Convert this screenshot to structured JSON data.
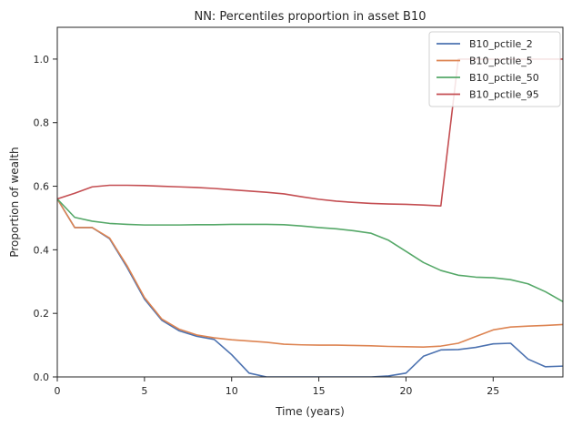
{
  "chart_data": {
    "type": "line",
    "title": "NN: Percentiles proportion in asset B10",
    "xlabel": "Time (years)",
    "ylabel": "Proportion of wealth",
    "xlim": [
      0,
      29
    ],
    "ylim": [
      0,
      1.1
    ],
    "xticks": [
      0,
      5,
      10,
      15,
      20,
      25
    ],
    "yticks": [
      0.0,
      0.2,
      0.4,
      0.6,
      0.8,
      1.0
    ],
    "grid": false,
    "legend_position": "top-right",
    "x": [
      0,
      1,
      2,
      3,
      4,
      5,
      6,
      7,
      8,
      9,
      10,
      11,
      12,
      13,
      14,
      15,
      16,
      17,
      18,
      19,
      20,
      21,
      22,
      23,
      24,
      25,
      26,
      27,
      28,
      29
    ],
    "series": [
      {
        "name": "B10_pctile_2",
        "color": "#4c72b0",
        "values": [
          0.56,
          0.47,
          0.47,
          0.435,
          0.345,
          0.245,
          0.178,
          0.145,
          0.128,
          0.118,
          0.07,
          0.012,
          0.0,
          0.0,
          0.0,
          0.0,
          0.0,
          0.0,
          0.0,
          0.003,
          0.012,
          0.065,
          0.085,
          0.086,
          0.093,
          0.104,
          0.106,
          0.056,
          0.032,
          0.034
        ]
      },
      {
        "name": "B10_pctile_5",
        "color": "#dd8452",
        "values": [
          0.56,
          0.47,
          0.47,
          0.437,
          0.35,
          0.25,
          0.182,
          0.15,
          0.132,
          0.123,
          0.117,
          0.113,
          0.109,
          0.103,
          0.101,
          0.1,
          0.1,
          0.099,
          0.098,
          0.096,
          0.095,
          0.094,
          0.097,
          0.106,
          0.127,
          0.148,
          0.157,
          0.16,
          0.162,
          0.165
        ]
      },
      {
        "name": "B10_pctile_50",
        "color": "#55a868",
        "values": [
          0.56,
          0.502,
          0.49,
          0.483,
          0.48,
          0.478,
          0.478,
          0.478,
          0.479,
          0.479,
          0.48,
          0.48,
          0.48,
          0.479,
          0.475,
          0.47,
          0.466,
          0.46,
          0.452,
          0.43,
          0.395,
          0.36,
          0.335,
          0.32,
          0.314,
          0.312,
          0.306,
          0.293,
          0.268,
          0.237
        ]
      },
      {
        "name": "B10_pctile_95",
        "color": "#c44e52",
        "values": [
          0.56,
          0.578,
          0.598,
          0.603,
          0.603,
          0.602,
          0.6,
          0.598,
          0.596,
          0.593,
          0.589,
          0.585,
          0.581,
          0.576,
          0.567,
          0.559,
          0.553,
          0.549,
          0.546,
          0.544,
          0.543,
          0.541,
          0.538,
          1.0,
          1.0,
          1.0,
          1.0,
          1.0,
          1.0,
          1.0
        ]
      }
    ]
  }
}
